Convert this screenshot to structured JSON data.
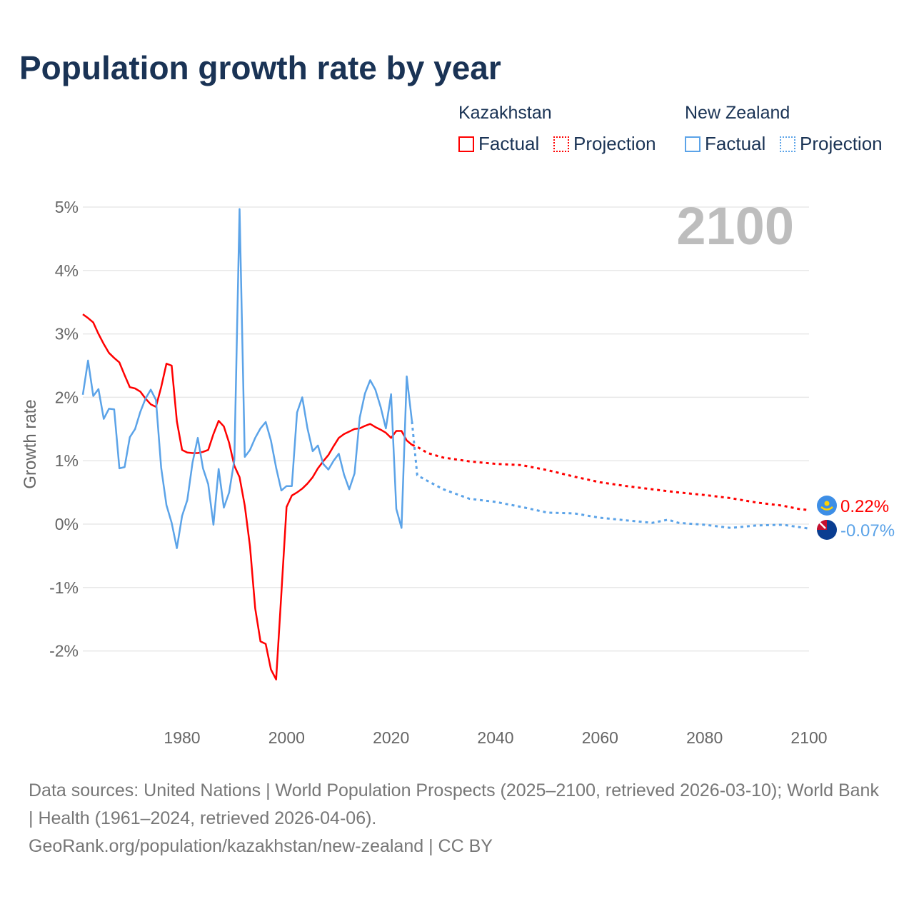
{
  "chart_data": {
    "type": "line",
    "title": "Population growth rate by year",
    "ylabel": "Growth rate",
    "xlabel": "",
    "xlim": [
      1961,
      2100
    ],
    "ylim": [
      -3,
      5.5
    ],
    "x_ticks": [
      1980,
      2000,
      2020,
      2040,
      2060,
      2080,
      2100
    ],
    "x_tick_labels": [
      "1980",
      "2000",
      "2020",
      "2040",
      "2060",
      "2080",
      "2100"
    ],
    "y_ticks": [
      5,
      4,
      3,
      2,
      1,
      0,
      -1,
      -2
    ],
    "y_tick_labels": [
      "5%",
      "4%",
      "3%",
      "2%",
      "1%",
      "0%",
      "-1%",
      "-2%"
    ],
    "grid": true,
    "year_display": "2100",
    "legend": {
      "placement": "top-right",
      "groups": [
        {
          "country": "Kazakhstan",
          "factual": "Factual",
          "projection": "Projection"
        },
        {
          "country": "New Zealand",
          "factual": "Factual",
          "projection": "Projection"
        }
      ]
    },
    "series": [
      {
        "name": "Kazakhstan",
        "kind": "factual",
        "color": "#ff0000",
        "start_year": 1961,
        "values": [
          3.31,
          3.25,
          3.18,
          3.0,
          2.84,
          2.7,
          2.62,
          2.55,
          2.35,
          2.16,
          2.14,
          2.09,
          1.98,
          1.89,
          1.85,
          2.16,
          2.53,
          2.5,
          1.62,
          1.17,
          1.13,
          1.12,
          1.12,
          1.14,
          1.17,
          1.42,
          1.63,
          1.54,
          1.28,
          0.92,
          0.74,
          0.29,
          -0.35,
          -1.33,
          -1.85,
          -1.89,
          -2.29,
          -2.45,
          -1.1,
          0.27,
          0.45,
          0.5,
          0.56,
          0.64,
          0.74,
          0.88,
          0.99,
          1.09,
          1.23,
          1.36,
          1.42,
          1.46,
          1.5,
          1.51,
          1.55,
          1.58,
          1.53,
          1.49,
          1.44,
          1.36,
          1.47,
          1.47,
          1.32,
          1.25
        ]
      },
      {
        "name": "Kazakhstan",
        "kind": "projection",
        "color": "#ff0000",
        "years": [
          2024,
          2025,
          2027,
          2030,
          2035,
          2040,
          2045,
          2050,
          2055,
          2060,
          2065,
          2070,
          2075,
          2080,
          2085,
          2090,
          2095,
          2098,
          2100
        ],
        "values": [
          1.25,
          1.22,
          1.12,
          1.05,
          0.99,
          0.95,
          0.93,
          0.85,
          0.75,
          0.66,
          0.6,
          0.55,
          0.5,
          0.46,
          0.41,
          0.34,
          0.29,
          0.24,
          0.22
        ]
      },
      {
        "name": "New Zealand",
        "kind": "factual",
        "color": "#5ba3e8",
        "start_year": 1961,
        "values": [
          2.04,
          2.58,
          2.02,
          2.13,
          1.66,
          1.82,
          1.81,
          0.88,
          0.9,
          1.37,
          1.5,
          1.77,
          1.98,
          2.12,
          1.96,
          0.89,
          0.3,
          0.02,
          -0.38,
          0.13,
          0.38,
          0.97,
          1.36,
          0.88,
          0.63,
          -0.01,
          0.87,
          0.26,
          0.5,
          1.01,
          4.97,
          1.06,
          1.17,
          1.36,
          1.51,
          1.61,
          1.32,
          0.89,
          0.53,
          0.6,
          0.6,
          1.76,
          2.0,
          1.51,
          1.15,
          1.24,
          0.95,
          0.86,
          1.0,
          1.11,
          0.78,
          0.55,
          0.8,
          1.68,
          2.06,
          2.27,
          2.12,
          1.85,
          1.51,
          2.05,
          0.24,
          -0.06,
          2.33,
          1.62
        ]
      },
      {
        "name": "New Zealand",
        "kind": "projection",
        "color": "#5ba3e8",
        "years": [
          2024,
          2025,
          2027,
          2030,
          2035,
          2040,
          2045,
          2050,
          2055,
          2060,
          2065,
          2070,
          2073,
          2075,
          2080,
          2085,
          2090,
          2095,
          2100
        ],
        "values": [
          1.62,
          0.77,
          0.68,
          0.55,
          0.4,
          0.35,
          0.27,
          0.18,
          0.17,
          0.1,
          0.06,
          0.02,
          0.07,
          0.02,
          -0.01,
          -0.06,
          -0.02,
          -0.01,
          -0.07
        ]
      }
    ],
    "end_labels": [
      {
        "country": "Kazakhstan",
        "text": "0.22%",
        "value": 0.22,
        "color": "#ff0000"
      },
      {
        "country": "New Zealand",
        "text": "-0.07%",
        "value": -0.07,
        "color": "#5ba3e8"
      }
    ]
  },
  "footer": {
    "sources": "Data sources: United Nations | World Population Prospects (2025–2100, retrieved 2026-03-10); World Bank | Health (1961–2024, retrieved 2026-04-06).",
    "link": "GeoRank.org/population/kazakhstan/new-zealand | CC BY"
  }
}
